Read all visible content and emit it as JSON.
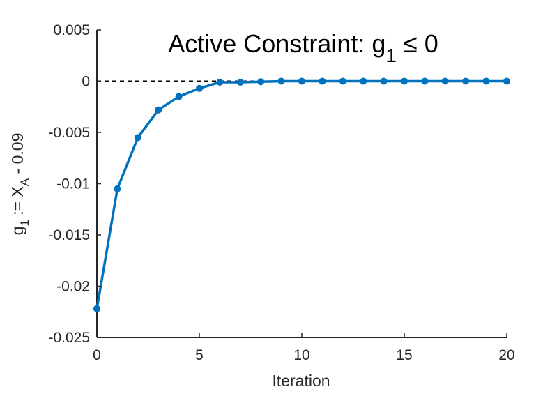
{
  "chart_data": {
    "type": "line",
    "title": {
      "prefix": "Active Constraint: g",
      "subscript": "1",
      "suffix": " ≤ 0"
    },
    "xlabel": "Iteration",
    "ylabel": {
      "parts": [
        "g",
        "1",
        " := X",
        "A",
        " - 0.09"
      ]
    },
    "xlim": [
      0,
      20
    ],
    "ylim": [
      -0.025,
      0.005
    ],
    "xticks": [
      0,
      5,
      10,
      15,
      20
    ],
    "xtick_labels": [
      "0",
      "5",
      "10",
      "15",
      "20"
    ],
    "yticks": [
      0.005,
      0,
      -0.005,
      -0.01,
      -0.015,
      -0.02,
      -0.025
    ],
    "ytick_labels": [
      "0.005",
      "0",
      "-0.005",
      "-0.01",
      "-0.015",
      "-0.02",
      "-0.025"
    ],
    "grid": false,
    "reference_line": {
      "y": 0,
      "style": "dashed",
      "color": "#000000"
    },
    "series": [
      {
        "color": "#0072BD",
        "marker": "circle",
        "x": [
          0,
          1,
          2,
          3,
          4,
          5,
          6,
          7,
          8,
          9,
          10,
          11,
          12,
          13,
          14,
          15,
          16,
          17,
          18,
          19,
          20
        ],
        "y": [
          -0.0222,
          -0.0105,
          -0.0055,
          -0.0028,
          -0.0015,
          -0.0007,
          -0.0001,
          -0.0001,
          -5e-05,
          0,
          0,
          0,
          0,
          0,
          0,
          0,
          0,
          0,
          0,
          0,
          0
        ]
      }
    ]
  }
}
